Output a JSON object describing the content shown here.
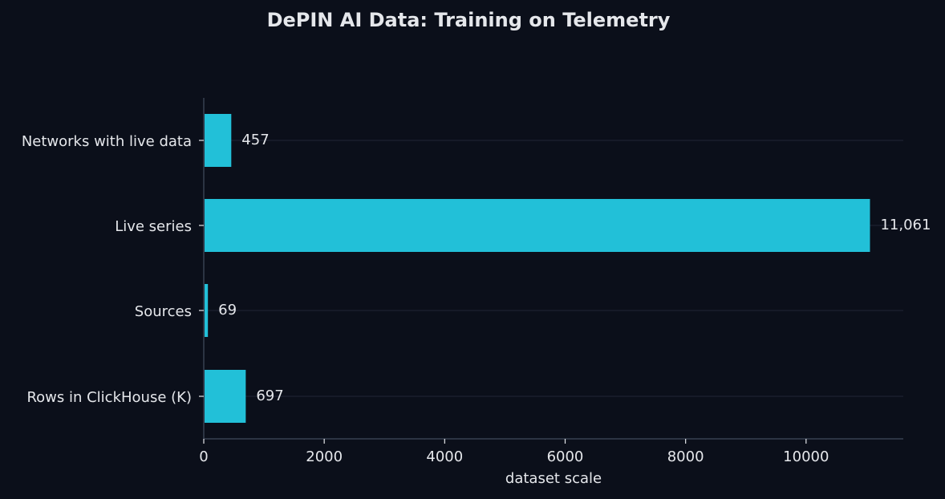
{
  "chart_data": {
    "type": "bar",
    "orientation": "horizontal",
    "title": "DePIN AI Data: Training on Telemetry",
    "xlabel": "dataset scale",
    "ylabel": "",
    "categories": [
      "Networks with live data",
      "Live series",
      "Sources",
      "Rows in ClickHouse (K)"
    ],
    "values": [
      457,
      11061,
      69,
      697
    ],
    "data_labels": [
      "457",
      "11,061",
      "69",
      "697"
    ],
    "xlim": [
      0,
      11614
    ],
    "xticks": [
      0,
      2000,
      4000,
      6000,
      8000,
      10000
    ],
    "xtick_labels": [
      "0",
      "2000",
      "4000",
      "6000",
      "8000",
      "10000"
    ],
    "grid": "horizontal lines at categories",
    "legend": "none",
    "colors": {
      "background": "#0b0f1a",
      "bar": "#22c0d8",
      "text": "#e5e7eb",
      "axis": "#374151",
      "grid": "#1a1f2c"
    }
  }
}
